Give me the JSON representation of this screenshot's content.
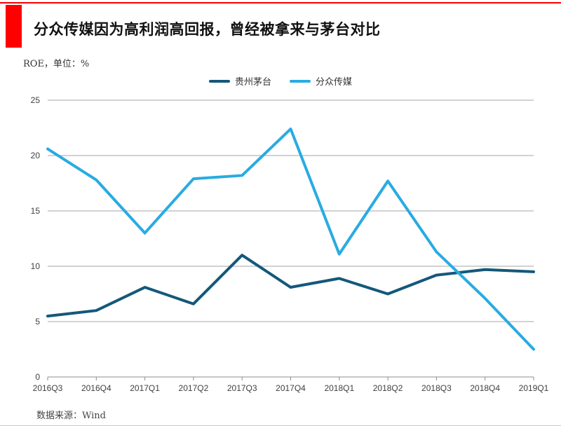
{
  "header": {
    "title": "分众传媒因为高利润高回报，曾经被拿来与茅台对比",
    "subtitle": "ROE，单位：%"
  },
  "colors": {
    "accent_red": "#fe0000",
    "gridline": "#a6a6a6",
    "axis": "#8c8c8c",
    "maotai_line": "#14587a",
    "focus_media_line": "#29abe2"
  },
  "footer": {
    "source": "数据来源：Wind"
  },
  "chart_data": {
    "type": "line",
    "title": "分众传媒因为高利润高回报，曾经被拿来与茅台对比",
    "ylabel": "ROE，单位：%",
    "xlabel": "",
    "grid": true,
    "legend_position": "top-center",
    "ylim": [
      0,
      25
    ],
    "yticks": [
      0,
      5,
      10,
      15,
      20,
      25
    ],
    "categories": [
      "2016Q3",
      "2016Q4",
      "2017Q1",
      "2017Q2",
      "2017Q3",
      "2017Q4",
      "2018Q1",
      "2018Q2",
      "2018Q3",
      "2018Q4",
      "2019Q1"
    ],
    "series": [
      {
        "name": "贵州茅台",
        "color": "#14587a",
        "values": [
          5.5,
          6.0,
          8.1,
          6.6,
          11.0,
          8.1,
          8.9,
          7.5,
          9.2,
          9.7,
          9.5
        ]
      },
      {
        "name": "分众传媒",
        "color": "#29abe2",
        "values": [
          20.6,
          17.8,
          13.0,
          17.9,
          18.2,
          22.4,
          11.1,
          17.7,
          11.3,
          7.1,
          2.5
        ]
      }
    ]
  }
}
